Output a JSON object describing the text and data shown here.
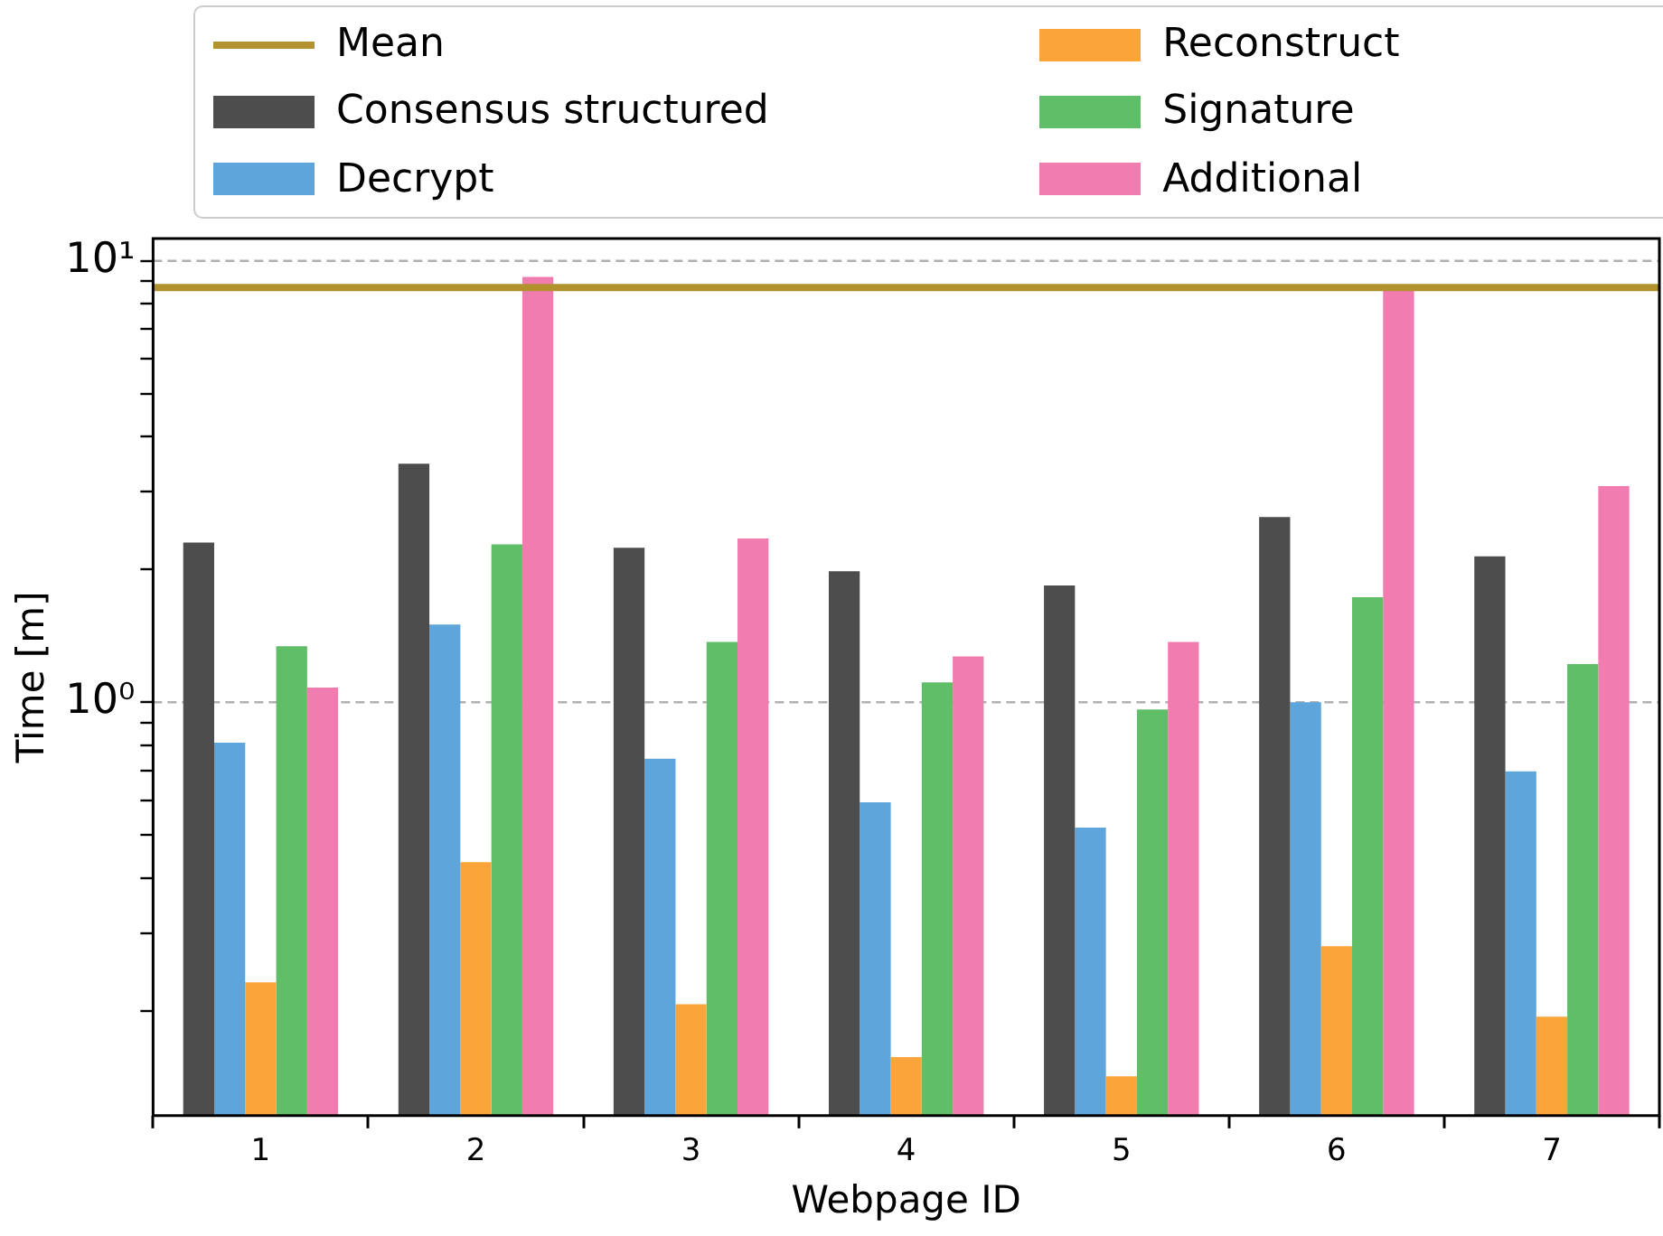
{
  "chart_data": {
    "type": "bar",
    "xlabel": "Webpage ID",
    "ylabel": "Time [m]",
    "categories": [
      "1",
      "2",
      "3",
      "4",
      "5",
      "6",
      "7"
    ],
    "series": [
      {
        "name": "Consensus structured",
        "color": "#4d4d4d",
        "values": [
          2.3,
          3.47,
          2.24,
          1.98,
          1.84,
          2.63,
          2.14
        ]
      },
      {
        "name": "Decrypt",
        "color": "#5da5da",
        "values": [
          0.81,
          1.5,
          0.745,
          0.593,
          0.52,
          1.0,
          0.697
        ]
      },
      {
        "name": "Reconstruct",
        "color": "#faa43a",
        "values": [
          0.232,
          0.434,
          0.207,
          0.157,
          0.142,
          0.28,
          0.194
        ]
      },
      {
        "name": "Signature",
        "color": "#60bd68",
        "values": [
          1.34,
          2.28,
          1.37,
          1.11,
          0.963,
          1.73,
          1.22
        ]
      },
      {
        "name": "Additional",
        "color": "#f17cb0",
        "values": [
          1.08,
          9.2,
          2.35,
          1.27,
          1.37,
          8.6,
          3.09
        ]
      }
    ],
    "ref_lines": [
      {
        "axis": "y",
        "value": 8.7,
        "label": "Mean",
        "color": "#b2912f"
      }
    ],
    "log": "y",
    "ylim": [
      0.1157,
      11.24
    ],
    "yticks": [
      {
        "value": 0.2,
        "label": null
      },
      {
        "value": 0.3,
        "label": null
      },
      {
        "value": 0.4,
        "label": null
      },
      {
        "value": 0.5,
        "label": null
      },
      {
        "value": 0.6,
        "label": null
      },
      {
        "value": 0.7,
        "label": null
      },
      {
        "value": 0.8,
        "label": null
      },
      {
        "value": 0.9,
        "label": null
      },
      {
        "value": 1,
        "label": "10⁰"
      },
      {
        "value": 2,
        "label": null
      },
      {
        "value": 3,
        "label": null
      },
      {
        "value": 4,
        "label": null
      },
      {
        "value": 5,
        "label": null
      },
      {
        "value": 6,
        "label": null
      },
      {
        "value": 7,
        "label": null
      },
      {
        "value": 8,
        "label": null
      },
      {
        "value": 9,
        "label": null
      },
      {
        "value": 10,
        "label": "10¹"
      }
    ],
    "grid": "y",
    "legend": "top"
  }
}
